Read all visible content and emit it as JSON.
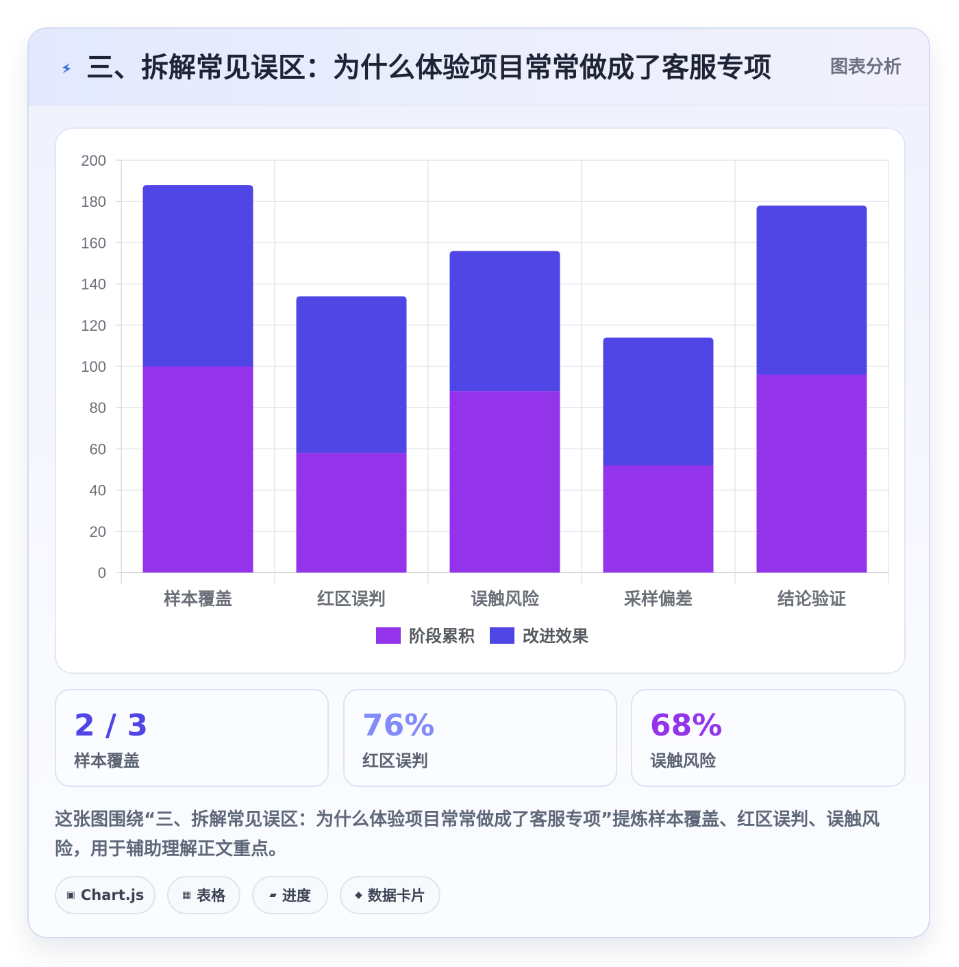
{
  "header": {
    "title": "三、拆解常见误区：为什么体验项目常常做成了客服专项",
    "icon": "bolt-icon",
    "tag": "图表分析"
  },
  "chart_data": {
    "type": "bar",
    "stacked": true,
    "categories": [
      "样本覆盖",
      "红区误判",
      "误触风险",
      "采样偏差",
      "结论验证"
    ],
    "series": [
      {
        "name": "阶段累积",
        "color": "#9333ea",
        "values": [
          100,
          58,
          88,
          52,
          96
        ]
      },
      {
        "name": "改进效果",
        "color": "#4f46e5",
        "values": [
          88,
          76,
          68,
          62,
          82
        ]
      }
    ],
    "ylim": [
      0,
      200
    ],
    "yticks": [
      0,
      20,
      40,
      60,
      80,
      100,
      120,
      140,
      160,
      180,
      200
    ],
    "grid": true,
    "legend_position": "bottom"
  },
  "stats": [
    {
      "value": "2 / 3",
      "label": "样本覆盖",
      "color": "#4f46e5"
    },
    {
      "value": "76%",
      "label": "红区误判",
      "color": "#818cf8"
    },
    {
      "value": "68%",
      "label": "误触风险",
      "color": "#9333ea"
    }
  ],
  "description": "这张图围绕“三、拆解常见误区：为什么体验项目常常做成了客服专项”提炼样本覆盖、红区误判、误触风险，用于辅助理解正文重点。",
  "chips": [
    {
      "icon": "chart-icon",
      "glyph": "▣",
      "label": "Chart.js"
    },
    {
      "icon": "table-icon",
      "glyph": "▦",
      "label": "表格"
    },
    {
      "icon": "progress-icon",
      "glyph": "▰",
      "label": "进度"
    },
    {
      "icon": "diamond-icon",
      "glyph": "◆",
      "label": "数据卡片"
    }
  ]
}
